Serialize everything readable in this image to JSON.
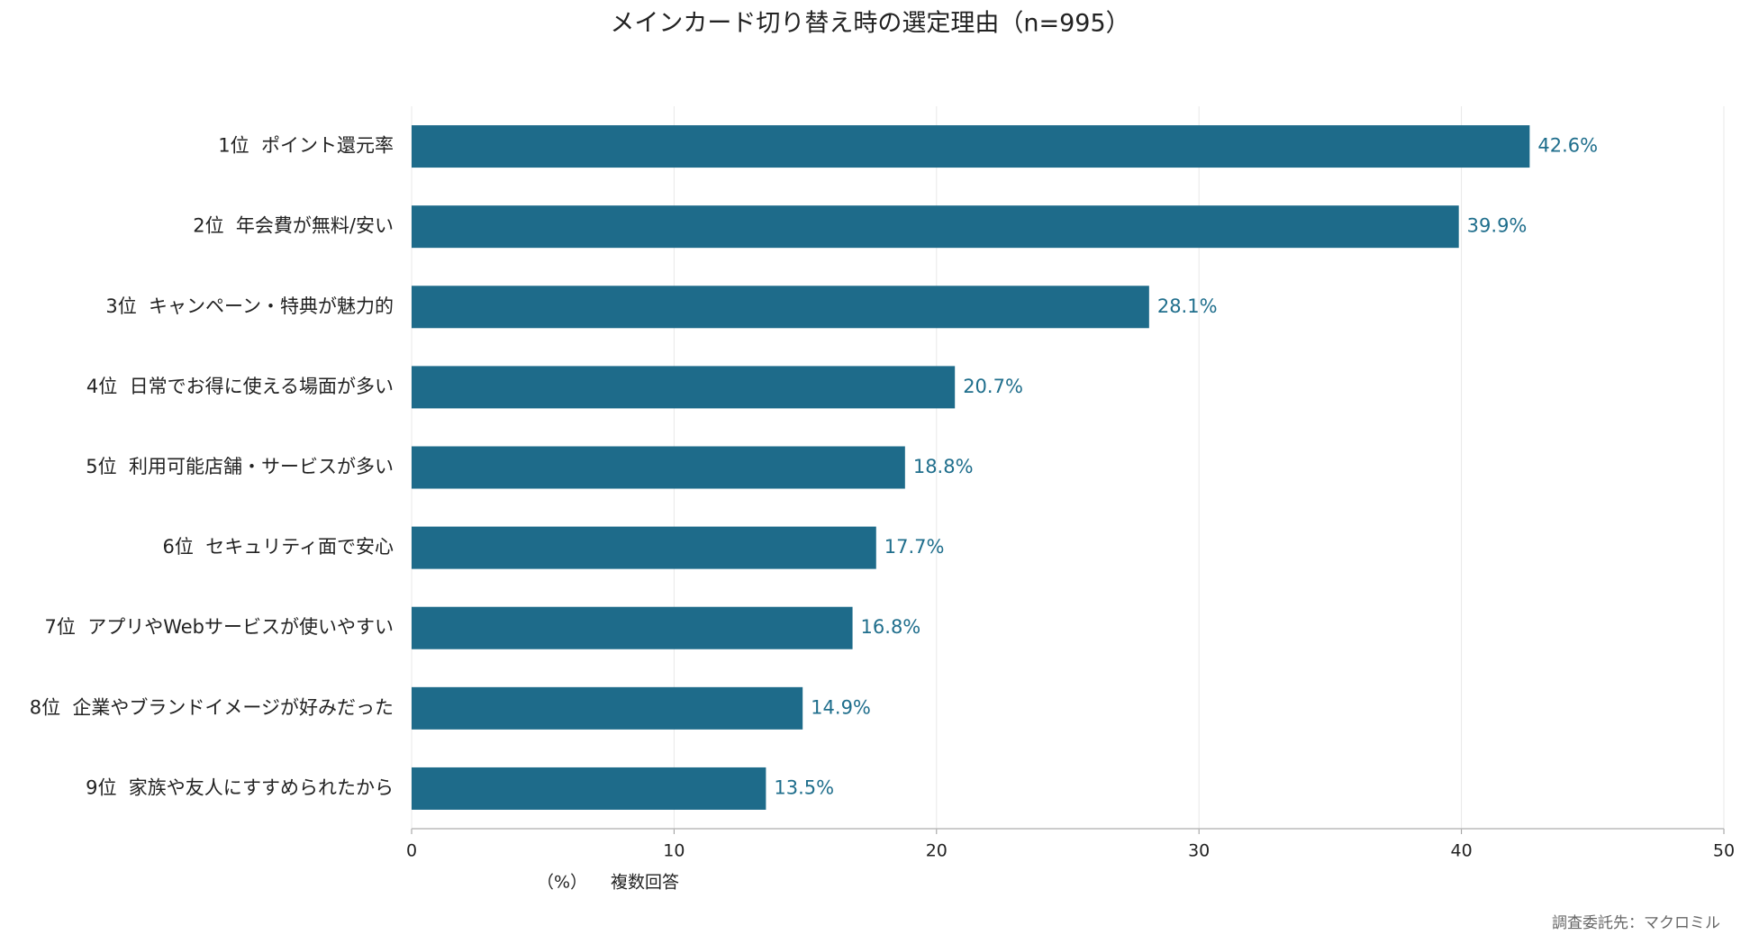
{
  "chart_data": {
    "type": "barh",
    "title": "メインカード切り替え時の選定理由（n=995）",
    "categories": [
      "1位  ポイント還元率",
      "2位  年会費が無料/安い",
      "3位  キャンペーン・特典が魅力的",
      "4位  日常でお得に使える場面が多い",
      "5位  利用可能店舗・サービスが多い",
      "6位  セキュリティ面で安心",
      "7位  アプリやWebサービスが使いやすい",
      "8位  企業やブランドイメージが好みだった",
      "9位  家族や友人にすすめられたから"
    ],
    "values": [
      42.6,
      39.9,
      28.1,
      20.7,
      18.8,
      17.7,
      16.8,
      14.9,
      13.5
    ],
    "value_labels": [
      "42.6%",
      "39.9%",
      "28.1%",
      "20.7%",
      "18.8%",
      "17.7%",
      "16.8%",
      "14.9%",
      "13.5%"
    ],
    "color": "#1e6b8a",
    "label_color": "#1f6e8c",
    "xlim": [
      0,
      50
    ],
    "xticks": [
      0,
      10,
      20,
      30,
      40,
      50
    ],
    "grid": true,
    "xlabel": "（%）",
    "note": "複数回答",
    "source": "調査委託先：マクロミル"
  }
}
